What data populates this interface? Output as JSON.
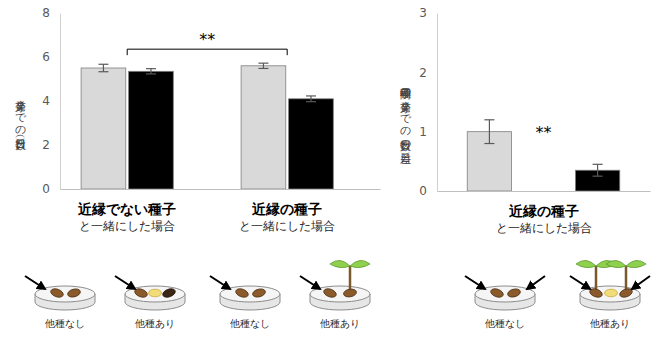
{
  "chart_data": [
    {
      "type": "bar",
      "y_label": "発芽までの日数（日）",
      "categories": [
        "近縁でない種子",
        "近縁の種子"
      ],
      "category_subtitles": [
        "と一緒にした場合",
        "と一緒にした場合"
      ],
      "series": [
        {
          "name": "他種なし",
          "color": "#d9d9d9",
          "values": [
            5.5,
            5.6
          ],
          "errors": [
            0.17,
            0.12
          ]
        },
        {
          "name": "他種あり",
          "color": "#000000",
          "values": [
            5.35,
            4.1
          ],
          "errors": [
            0.12,
            0.13
          ]
        }
      ],
      "ylim": [
        0,
        8
      ],
      "yticks": [
        0,
        2,
        4,
        6,
        8
      ],
      "annotations": [
        {
          "text": "**"
        }
      ]
    },
    {
      "type": "bar",
      "y_label": "二種子間の発芽までの日数の差（日）",
      "categories": [
        "近縁の種子"
      ],
      "category_subtitles": [
        "と一緒にした場合"
      ],
      "series": [
        {
          "name": "他種なし",
          "color": "#d9d9d9",
          "values": [
            1.0
          ],
          "errors": [
            0.2
          ]
        },
        {
          "name": "他種あり",
          "color": "#000000",
          "values": [
            0.35
          ],
          "errors": [
            0.1
          ]
        }
      ],
      "ylim": [
        0,
        3
      ],
      "yticks": [
        0,
        1,
        2,
        3
      ],
      "annotations": [
        {
          "text": "**"
        }
      ]
    }
  ]
}
